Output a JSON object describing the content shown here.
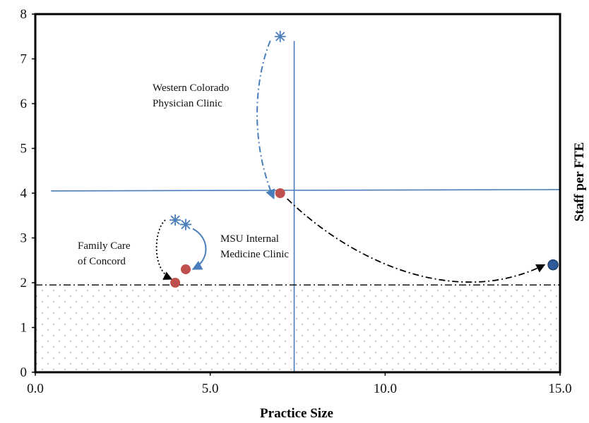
{
  "chart_data": {
    "type": "scatter",
    "title": "",
    "xlabel": "Practice Size",
    "ylabel": "Staff per FTE",
    "xlim": [
      0,
      15
    ],
    "ylim": [
      0,
      8
    ],
    "x_ticks": [
      "0.0",
      "5.0",
      "10.0",
      "15.0"
    ],
    "y_ticks": [
      "0",
      "1",
      "2",
      "3",
      "4",
      "5",
      "6",
      "7",
      "8"
    ],
    "grid": false,
    "legend": "none",
    "colors": {
      "before_marker": "#4A7EBB",
      "after_marker": "#C0504D",
      "target_marker": "#2E5C9A",
      "reference_line": "#4A7EBB",
      "shaded_region": "#C9C9C9"
    },
    "reference_lines": {
      "vertical_x": 7.4,
      "horizontal_y": 4.05,
      "threshold_y": 1.95
    },
    "shaded_region": {
      "y_from": 0,
      "y_to": 1.95
    },
    "clinics": [
      {
        "label": "Western Colorado Physician Clinic",
        "before": {
          "x": 7.0,
          "y": 7.5
        },
        "after": {
          "x": 7.0,
          "y": 4.0
        }
      },
      {
        "label": "Family Care of Concord",
        "before": {
          "x": 4.0,
          "y": 3.4
        },
        "after": {
          "x": 4.0,
          "y": 2.0
        }
      },
      {
        "label": "MSU Internal Medicine Clinic",
        "before": {
          "x": 4.3,
          "y": 3.3
        },
        "after": {
          "x": 4.3,
          "y": 2.3
        }
      }
    ],
    "target_point": {
      "x": 14.8,
      "y": 2.4
    },
    "annotations": [
      {
        "lines": [
          "Western Colorado",
          "Physician Clinic"
        ]
      },
      {
        "lines": [
          "Family Care",
          "of Concord"
        ]
      },
      {
        "lines": [
          "MSU Internal",
          "Medicine Clinic"
        ]
      }
    ]
  }
}
